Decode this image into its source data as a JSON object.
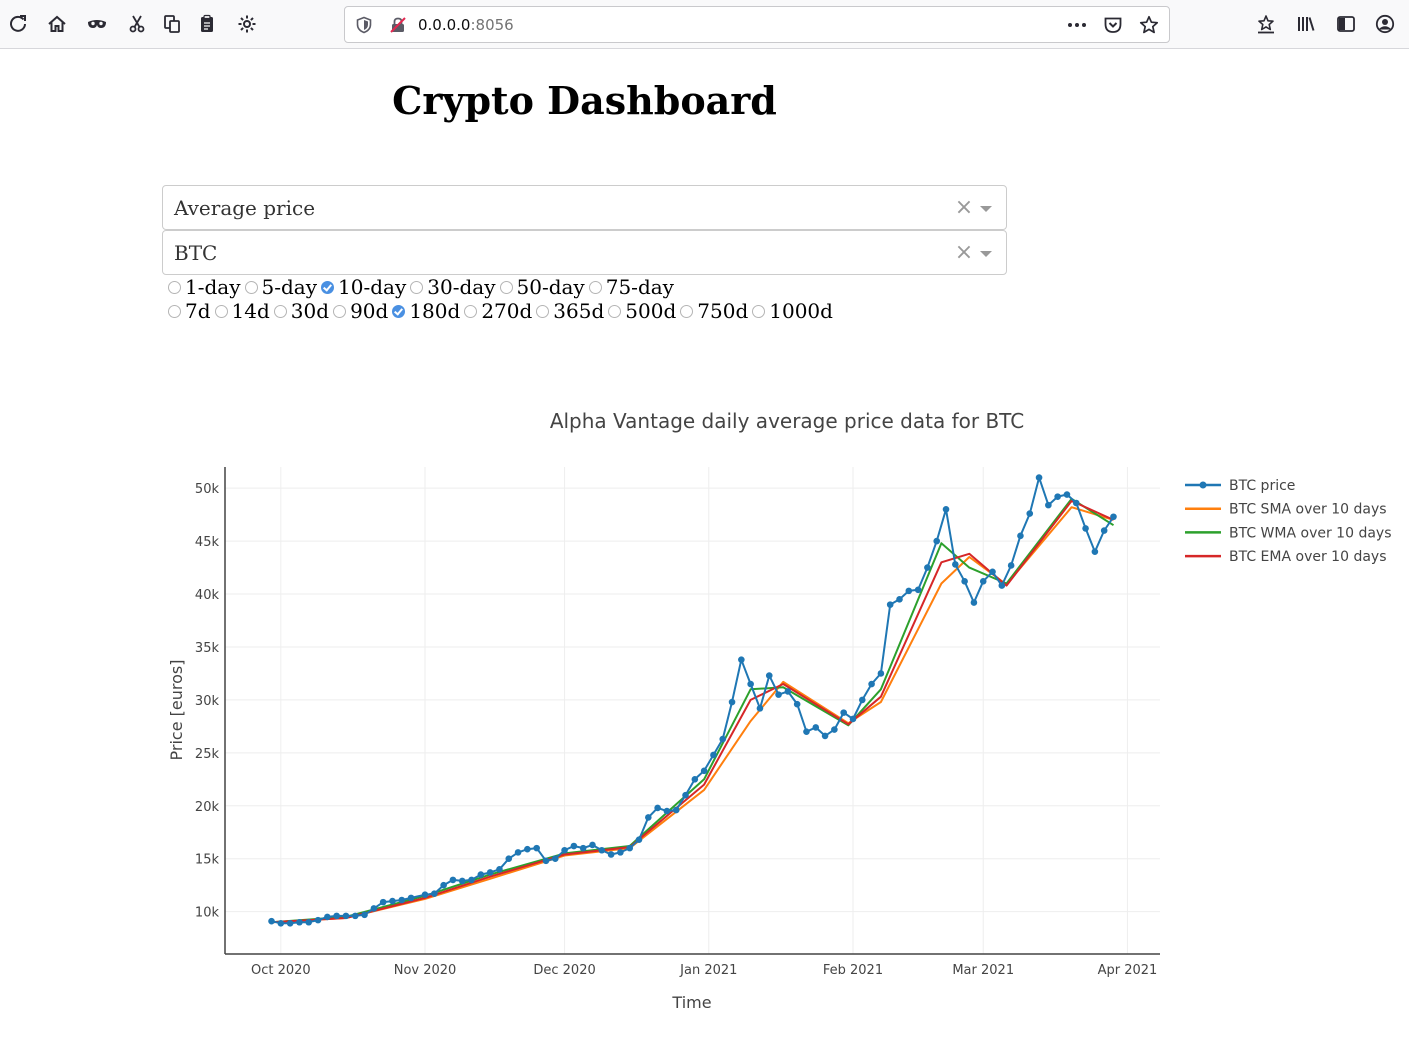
{
  "browser": {
    "url_host": "0.0.0.0",
    "url_port": ":8056"
  },
  "page": {
    "title": "Crypto Dashboard"
  },
  "controls": {
    "metric_dropdown": {
      "value": "Average price",
      "clear": "×"
    },
    "coin_dropdown": {
      "value": "BTC",
      "clear": "×"
    },
    "window_options": [
      {
        "label": "1-day",
        "checked": false
      },
      {
        "label": "5-day",
        "checked": false
      },
      {
        "label": "10-day",
        "checked": true
      },
      {
        "label": "30-day",
        "checked": false
      },
      {
        "label": "50-day",
        "checked": false
      },
      {
        "label": "75-day",
        "checked": false
      }
    ],
    "range_options": [
      {
        "label": "7d",
        "checked": false
      },
      {
        "label": "14d",
        "checked": false
      },
      {
        "label": "30d",
        "checked": false
      },
      {
        "label": "90d",
        "checked": false
      },
      {
        "label": "180d",
        "checked": true
      },
      {
        "label": "270d",
        "checked": false
      },
      {
        "label": "365d",
        "checked": false
      },
      {
        "label": "500d",
        "checked": false
      },
      {
        "label": "750d",
        "checked": false
      },
      {
        "label": "1000d",
        "checked": false
      }
    ]
  },
  "chart_data": {
    "type": "line",
    "title": "Alpha Vantage daily average price data for BTC",
    "xlabel": "Time",
    "ylabel": "Price [euros]",
    "x_ticks": [
      "Oct 2020",
      "Nov 2020",
      "Dec 2020",
      "Jan 2021",
      "Feb 2021",
      "Mar 2021",
      "Apr 2021"
    ],
    "x_tick_dates": [
      "2020-10-01",
      "2020-11-01",
      "2020-12-01",
      "2021-01-01",
      "2021-02-01",
      "2021-03-01",
      "2021-04-01"
    ],
    "y_ticks": [
      "10k",
      "15k",
      "20k",
      "25k",
      "30k",
      "35k",
      "40k",
      "45k",
      "50k"
    ],
    "y_tick_values": [
      10000,
      15000,
      20000,
      25000,
      30000,
      35000,
      40000,
      45000,
      50000
    ],
    "xlim": [
      "2020-09-19",
      "2021-04-08"
    ],
    "ylim": [
      6000,
      52000
    ],
    "grid": true,
    "legend_position": "top-right",
    "colors": {
      "price": "#1f77b4",
      "sma": "#ff7f0e",
      "wma": "#2ca02c",
      "ema": "#d62728"
    },
    "series": [
      {
        "name": "BTC price",
        "key": "price",
        "markers": true,
        "points": [
          [
            "2020-09-29",
            9100
          ],
          [
            "2020-10-01",
            8900
          ],
          [
            "2020-10-03",
            8900
          ],
          [
            "2020-10-05",
            9000
          ],
          [
            "2020-10-07",
            9000
          ],
          [
            "2020-10-09",
            9200
          ],
          [
            "2020-10-11",
            9500
          ],
          [
            "2020-10-13",
            9600
          ],
          [
            "2020-10-15",
            9600
          ],
          [
            "2020-10-17",
            9600
          ],
          [
            "2020-10-19",
            9700
          ],
          [
            "2020-10-21",
            10300
          ],
          [
            "2020-10-23",
            10900
          ],
          [
            "2020-10-25",
            11000
          ],
          [
            "2020-10-27",
            11100
          ],
          [
            "2020-10-29",
            11300
          ],
          [
            "2020-11-01",
            11600
          ],
          [
            "2020-11-03",
            11700
          ],
          [
            "2020-11-05",
            12500
          ],
          [
            "2020-11-07",
            13000
          ],
          [
            "2020-11-09",
            12900
          ],
          [
            "2020-11-11",
            13000
          ],
          [
            "2020-11-13",
            13500
          ],
          [
            "2020-11-15",
            13700
          ],
          [
            "2020-11-17",
            14000
          ],
          [
            "2020-11-19",
            15000
          ],
          [
            "2020-11-21",
            15600
          ],
          [
            "2020-11-23",
            15900
          ],
          [
            "2020-11-25",
            16000
          ],
          [
            "2020-11-27",
            14800
          ],
          [
            "2020-11-29",
            15000
          ],
          [
            "2020-12-01",
            15800
          ],
          [
            "2020-12-03",
            16200
          ],
          [
            "2020-12-05",
            16000
          ],
          [
            "2020-12-07",
            16300
          ],
          [
            "2020-12-09",
            15800
          ],
          [
            "2020-12-11",
            15400
          ],
          [
            "2020-12-13",
            15600
          ],
          [
            "2020-12-15",
            16000
          ],
          [
            "2020-12-17",
            16800
          ],
          [
            "2020-12-19",
            18900
          ],
          [
            "2020-12-21",
            19800
          ],
          [
            "2020-12-23",
            19500
          ],
          [
            "2020-12-25",
            19600
          ],
          [
            "2020-12-27",
            21000
          ],
          [
            "2020-12-29",
            22500
          ],
          [
            "2020-12-31",
            23300
          ],
          [
            "2021-01-02",
            24800
          ],
          [
            "2021-01-04",
            26300
          ],
          [
            "2021-01-06",
            29800
          ],
          [
            "2021-01-08",
            33800
          ],
          [
            "2021-01-10",
            31500
          ],
          [
            "2021-01-12",
            29200
          ],
          [
            "2021-01-14",
            32300
          ],
          [
            "2021-01-16",
            30500
          ],
          [
            "2021-01-18",
            30800
          ],
          [
            "2021-01-20",
            29600
          ],
          [
            "2021-01-22",
            27000
          ],
          [
            "2021-01-24",
            27400
          ],
          [
            "2021-01-26",
            26600
          ],
          [
            "2021-01-28",
            27200
          ],
          [
            "2021-01-30",
            28800
          ],
          [
            "2021-02-01",
            28200
          ],
          [
            "2021-02-03",
            30000
          ],
          [
            "2021-02-05",
            31500
          ],
          [
            "2021-02-07",
            32500
          ],
          [
            "2021-02-09",
            39000
          ],
          [
            "2021-02-11",
            39500
          ],
          [
            "2021-02-13",
            40300
          ],
          [
            "2021-02-15",
            40400
          ],
          [
            "2021-02-17",
            42500
          ],
          [
            "2021-02-19",
            45000
          ],
          [
            "2021-02-21",
            48000
          ],
          [
            "2021-02-23",
            42800
          ],
          [
            "2021-02-25",
            41200
          ],
          [
            "2021-02-27",
            39200
          ],
          [
            "2021-03-01",
            41200
          ],
          [
            "2021-03-03",
            42100
          ],
          [
            "2021-03-05",
            40800
          ],
          [
            "2021-03-07",
            42700
          ],
          [
            "2021-03-09",
            45500
          ],
          [
            "2021-03-11",
            47600
          ],
          [
            "2021-03-13",
            51000
          ],
          [
            "2021-03-15",
            48400
          ],
          [
            "2021-03-17",
            49200
          ],
          [
            "2021-03-19",
            49400
          ],
          [
            "2021-03-21",
            48600
          ],
          [
            "2021-03-23",
            46200
          ],
          [
            "2021-03-25",
            44000
          ],
          [
            "2021-03-27",
            46000
          ],
          [
            "2021-03-29",
            47300
          ]
        ]
      },
      {
        "name": "BTC SMA over 10 days",
        "key": "sma",
        "markers": false,
        "points": [
          [
            "2020-09-29",
            9000
          ],
          [
            "2020-10-15",
            9400
          ],
          [
            "2020-11-01",
            11200
          ],
          [
            "2020-11-15",
            13100
          ],
          [
            "2020-12-01",
            15300
          ],
          [
            "2020-12-15",
            16000
          ],
          [
            "2020-12-31",
            21500
          ],
          [
            "2021-01-10",
            28000
          ],
          [
            "2021-01-17",
            31700
          ],
          [
            "2021-01-31",
            27800
          ],
          [
            "2021-02-07",
            29800
          ],
          [
            "2021-02-20",
            41000
          ],
          [
            "2021-02-26",
            43500
          ],
          [
            "2021-03-06",
            40900
          ],
          [
            "2021-03-20",
            48200
          ],
          [
            "2021-03-29",
            47000
          ]
        ]
      },
      {
        "name": "BTC WMA over 10 days",
        "key": "wma",
        "markers": false,
        "points": [
          [
            "2020-09-29",
            9000
          ],
          [
            "2020-10-15",
            9500
          ],
          [
            "2020-11-01",
            11500
          ],
          [
            "2020-11-15",
            13500
          ],
          [
            "2020-12-01",
            15500
          ],
          [
            "2020-12-15",
            16200
          ],
          [
            "2020-12-31",
            22500
          ],
          [
            "2021-01-10",
            31000
          ],
          [
            "2021-01-17",
            31200
          ],
          [
            "2021-01-31",
            27600
          ],
          [
            "2021-02-07",
            31000
          ],
          [
            "2021-02-20",
            44800
          ],
          [
            "2021-02-26",
            42500
          ],
          [
            "2021-03-06",
            41000
          ],
          [
            "2021-03-20",
            49000
          ],
          [
            "2021-03-29",
            46500
          ]
        ]
      },
      {
        "name": "BTC EMA over 10 days",
        "key": "ema",
        "markers": false,
        "points": [
          [
            "2020-09-29",
            9000
          ],
          [
            "2020-10-15",
            9400
          ],
          [
            "2020-11-01",
            11300
          ],
          [
            "2020-11-15",
            13300
          ],
          [
            "2020-12-01",
            15400
          ],
          [
            "2020-12-15",
            16100
          ],
          [
            "2020-12-31",
            22000
          ],
          [
            "2021-01-10",
            30000
          ],
          [
            "2021-01-17",
            31500
          ],
          [
            "2021-01-31",
            27700
          ],
          [
            "2021-02-07",
            30300
          ],
          [
            "2021-02-20",
            43000
          ],
          [
            "2021-02-26",
            43800
          ],
          [
            "2021-03-06",
            40800
          ],
          [
            "2021-03-20",
            48800
          ],
          [
            "2021-03-29",
            47000
          ]
        ]
      }
    ]
  }
}
